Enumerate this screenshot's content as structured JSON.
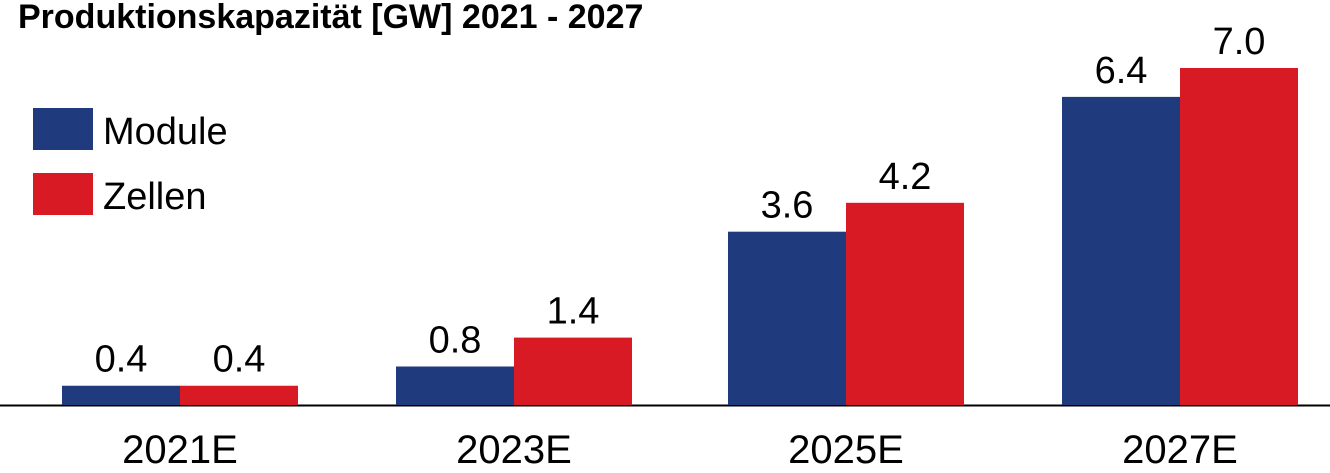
{
  "chart_data": {
    "type": "bar",
    "title": "Produktionskapazität [GW] 2021 - 2027",
    "categories": [
      "2021E",
      "2023E",
      "2025E",
      "2027E"
    ],
    "series": [
      {
        "name": "Module",
        "color": "#1f3a7d",
        "values": [
          0.4,
          0.8,
          3.6,
          6.4
        ],
        "value_labels": [
          "0.4",
          "0.8",
          "3.6",
          "6.4"
        ]
      },
      {
        "name": "Zellen",
        "color": "#d71a24",
        "values": [
          0.4,
          1.4,
          4.2,
          7.0
        ],
        "value_labels": [
          "0.4",
          "1.4",
          "4.2",
          "7.0"
        ]
      }
    ],
    "legend": "upper left"
  }
}
